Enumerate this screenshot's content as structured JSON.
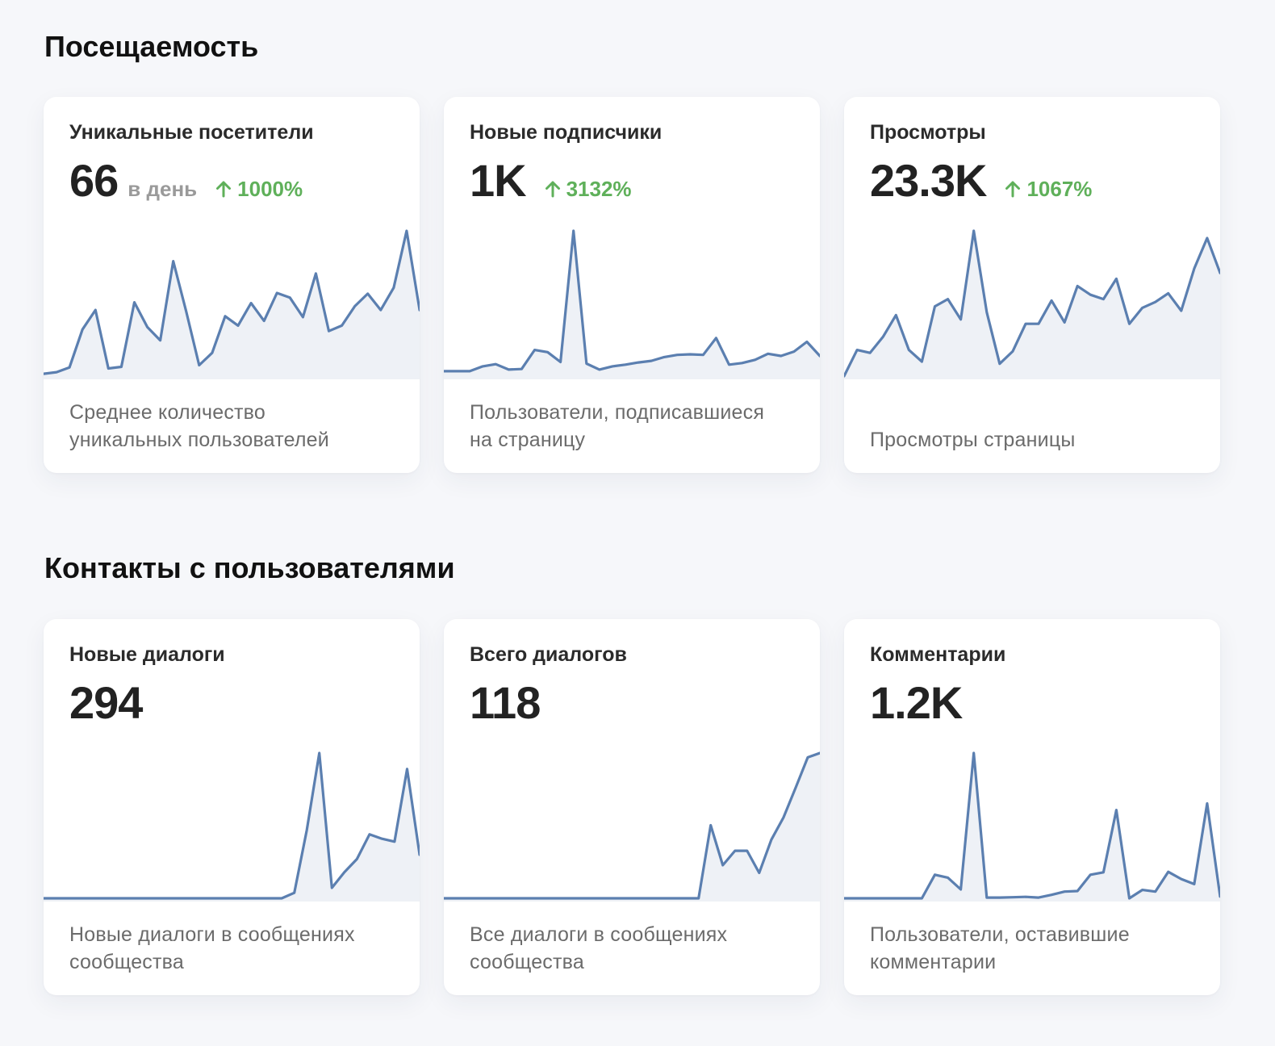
{
  "sections": [
    {
      "title": "Посещаемость"
    },
    {
      "title": "Контакты с пользователями"
    }
  ],
  "cards": [
    {
      "title": "Уникальные посетители",
      "value": "66",
      "unit": "в день",
      "change": "1000%",
      "desc_line1": "Среднее количество",
      "desc_line2": "уникальных пользователей"
    },
    {
      "title": "Новые подписчики",
      "value": "1K",
      "unit": "",
      "change": "3132%",
      "desc_line1": "Пользователи, подписавшиеся",
      "desc_line2": "на страницу"
    },
    {
      "title": "Просмотры",
      "value": "23.3K",
      "unit": "",
      "change": "1067%",
      "desc_line1": "",
      "desc_line2": "Просмотры страницы"
    },
    {
      "title": "Новые диалоги",
      "value": "294",
      "unit": "",
      "change": "",
      "desc_line1": "Новые диалоги в сообщениях",
      "desc_line2": "сообщества"
    },
    {
      "title": "Всего диалогов",
      "value": "118",
      "unit": "",
      "change": "",
      "desc_line1": "Все диалоги в сообщениях",
      "desc_line2": "сообщества"
    },
    {
      "title": "Комментарии",
      "value": "1.2K",
      "unit": "",
      "change": "",
      "desc_line1": "Пользователи, оставившие",
      "desc_line2": "комментарии"
    }
  ],
  "colors": {
    "line": "#5b7fb0",
    "fill": "#eef1f6",
    "positive": "#5fb05a",
    "background": "#f6f7fa"
  },
  "chart_data": [
    {
      "type": "line",
      "title": "Уникальные посетители",
      "ylim": [
        0,
        100
      ],
      "values": [
        1.6,
        2.7,
        6.0,
        32.1,
        45.5,
        5.3,
        6.4,
        50.8,
        33.7,
        24.6,
        79.1,
        44.4,
        7.5,
        16.0,
        41.2,
        34.8,
        50.3,
        38.0,
        57.2,
        54.0,
        40.6,
        70.6,
        31.0,
        34.8,
        48.1,
        56.7,
        45.5,
        60.9,
        100.0,
        45.5
      ]
    },
    {
      "type": "line",
      "title": "Новые подписчики",
      "ylim": [
        0,
        100
      ],
      "values": [
        3.4,
        3.4,
        3.4,
        6.7,
        8.2,
        4.5,
        4.9,
        18.0,
        16.5,
        9.7,
        100.0,
        8.6,
        4.5,
        6.7,
        7.9,
        9.4,
        10.5,
        13.1,
        14.6,
        15.0,
        14.6,
        26.2,
        7.9,
        9.0,
        11.2,
        15.4,
        13.9,
        16.9,
        23.6,
        13.9
      ]
    },
    {
      "type": "line",
      "title": "Просмотры",
      "ylim": [
        0,
        100
      ],
      "values": [
        0.0,
        18.0,
        16.0,
        27.0,
        42.0,
        18.0,
        10.0,
        48.0,
        53.0,
        39.0,
        100.0,
        44.0,
        8.5,
        17.0,
        36.0,
        36.0,
        52.0,
        37.0,
        62.0,
        56.0,
        53.0,
        67.0,
        36.0,
        47.0,
        51.0,
        57.0,
        45.0,
        74.0,
        95.0,
        71.0
      ]
    },
    {
      "type": "line",
      "title": "Новые диалоги",
      "ylim": [
        0,
        100
      ],
      "values": [
        0,
        0,
        0,
        0,
        0,
        0,
        0,
        0,
        0,
        0,
        0,
        0,
        0,
        0,
        0,
        0,
        0,
        0,
        0,
        0,
        3.8,
        47.0,
        100.0,
        7.2,
        18.0,
        27.0,
        44.0,
        41.0,
        39.0,
        89.0,
        30.0
      ]
    },
    {
      "type": "line",
      "title": "Всего диалогов",
      "ylim": [
        0,
        100
      ],
      "values": [
        0,
        0,
        0,
        0,
        0,
        0,
        0,
        0,
        0,
        0,
        0,
        0,
        0,
        0,
        0,
        0,
        0,
        0,
        0,
        0,
        0,
        0,
        50.3,
        22.8,
        32.7,
        32.7,
        17.5,
        40.4,
        55.6,
        76.0,
        97.0,
        100.0
      ]
    },
    {
      "type": "line",
      "title": "Комментарии",
      "ylim": [
        0,
        100
      ],
      "values": [
        0,
        0,
        0,
        0,
        0,
        0,
        0,
        16.2,
        14.2,
        6.1,
        100.0,
        0.5,
        0.5,
        0.7,
        1.0,
        0.5,
        2.4,
        4.6,
        5.0,
        16.2,
        17.9,
        60.8,
        0.0,
        5.8,
        4.6,
        18.2,
        13.3,
        9.8,
        65.3,
        1.2
      ]
    }
  ]
}
